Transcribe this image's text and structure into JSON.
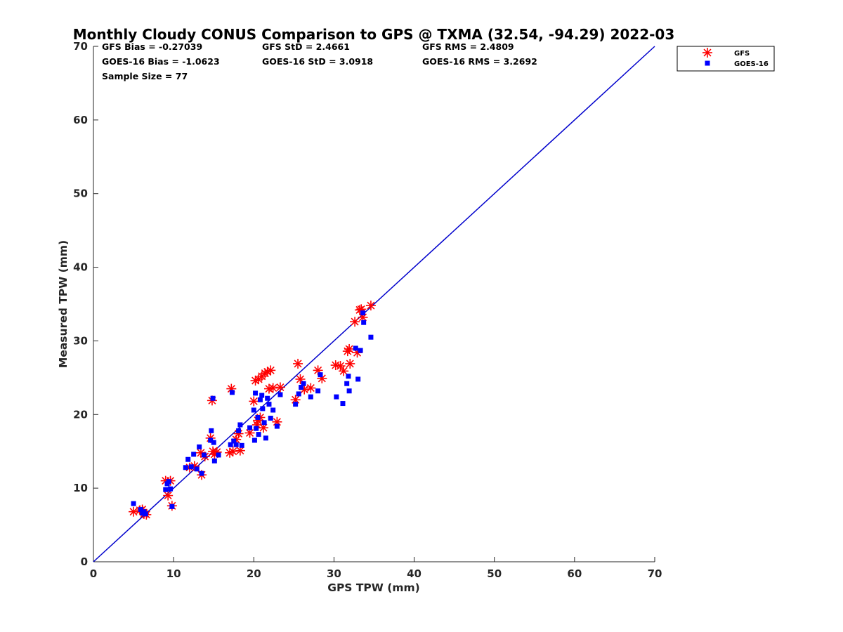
{
  "chart_data": {
    "type": "scatter",
    "title": "Monthly Cloudy CONUS Comparison to GPS @ TXMA (32.54, -94.29) 2022-03",
    "xlabel": "GPS TPW (mm)",
    "ylabel": "Measured TPW (mm)",
    "xlim": [
      0,
      70
    ],
    "ylim": [
      0,
      70
    ],
    "xticks": [
      0,
      10,
      20,
      30,
      40,
      50,
      60,
      70
    ],
    "yticks": [
      0,
      10,
      20,
      30,
      40,
      50,
      60,
      70
    ],
    "grid": false,
    "legend_position": "outside-top-right",
    "one_to_one_line": {
      "x": [
        0,
        70
      ],
      "y": [
        0,
        70
      ],
      "color": "#0000cc"
    },
    "stats": {
      "gfs_bias": "GFS Bias = -0.27039",
      "gfs_std": "GFS StD = 2.4661",
      "gfs_rms": "GFS RMS = 2.4809",
      "goes_bias": "GOES-16 Bias = -1.0623",
      "goes_std": "GOES-16 StD = 3.0918",
      "goes_rms": "GOES-16 RMS = 3.2692",
      "sample_size": "Sample Size = 77"
    },
    "series": [
      {
        "name": "GFS",
        "marker": "asterisk",
        "color": "#ff0000",
        "points": [
          [
            5,
            6.8
          ],
          [
            5.8,
            7
          ],
          [
            6.1,
            7.1
          ],
          [
            6.3,
            6.5
          ],
          [
            6.6,
            6.4
          ],
          [
            9,
            11
          ],
          [
            9.3,
            9
          ],
          [
            9.6,
            11
          ],
          [
            9.8,
            7.6
          ],
          [
            12,
            12.8
          ],
          [
            12.6,
            13
          ],
          [
            13.4,
            14.8
          ],
          [
            13.5,
            11.8
          ],
          [
            13.9,
            14.3
          ],
          [
            14.6,
            16.8
          ],
          [
            14.8,
            21.9
          ],
          [
            14.9,
            15
          ],
          [
            15.1,
            14.6
          ],
          [
            15.4,
            14.9
          ],
          [
            17,
            14.8
          ],
          [
            17.2,
            23.5
          ],
          [
            17.4,
            15
          ],
          [
            17.8,
            16.6
          ],
          [
            18.1,
            17.4
          ],
          [
            18.3,
            15.1
          ],
          [
            19.5,
            17.5
          ],
          [
            20,
            21.8
          ],
          [
            20.2,
            24.6
          ],
          [
            20.4,
            18.6
          ],
          [
            20.5,
            19.2
          ],
          [
            20.6,
            24.8
          ],
          [
            20.8,
            19.6
          ],
          [
            21,
            25.2
          ],
          [
            21.2,
            18.2
          ],
          [
            21.4,
            25.6
          ],
          [
            21.7,
            25.8
          ],
          [
            21.9,
            23.5
          ],
          [
            22.1,
            26
          ],
          [
            22.4,
            23.6
          ],
          [
            22.9,
            19
          ],
          [
            23.3,
            23.7
          ],
          [
            25.2,
            22
          ],
          [
            25.5,
            26.9
          ],
          [
            25.8,
            24.8
          ],
          [
            26.3,
            23.4
          ],
          [
            27.1,
            23.6
          ],
          [
            28,
            26
          ],
          [
            28.5,
            24.9
          ],
          [
            30.2,
            26.7
          ],
          [
            30.8,
            26.6
          ],
          [
            31.2,
            25.9
          ],
          [
            31.7,
            28.6
          ],
          [
            31.9,
            28.9
          ],
          [
            32,
            26.9
          ],
          [
            32.6,
            32.6
          ],
          [
            32.9,
            28.4
          ],
          [
            33.2,
            34.2
          ],
          [
            33.4,
            34.3
          ],
          [
            33.6,
            33.2
          ],
          [
            34.6,
            34.8
          ]
        ]
      },
      {
        "name": "GOES-16",
        "marker": "square",
        "color": "#0000ff",
        "points": [
          [
            5,
            7.9
          ],
          [
            5.9,
            7.1
          ],
          [
            6.1,
            6.6
          ],
          [
            6.3,
            6.8
          ],
          [
            6.5,
            6.5
          ],
          [
            9,
            9.8
          ],
          [
            9.2,
            10.6
          ],
          [
            9.4,
            10.9
          ],
          [
            9.6,
            9.9
          ],
          [
            9.8,
            7.5
          ],
          [
            11.5,
            12.8
          ],
          [
            11.8,
            13.9
          ],
          [
            12.2,
            12.9
          ],
          [
            12.5,
            14.6
          ],
          [
            12.9,
            12.6
          ],
          [
            13.2,
            15.6
          ],
          [
            13.5,
            12
          ],
          [
            13.8,
            14.5
          ],
          [
            14.6,
            16.5
          ],
          [
            14.7,
            17.8
          ],
          [
            14.9,
            22.2
          ],
          [
            15,
            16.2
          ],
          [
            15.1,
            13.7
          ],
          [
            15.6,
            14.5
          ],
          [
            17.1,
            15.9
          ],
          [
            17.3,
            23
          ],
          [
            17.5,
            16.4
          ],
          [
            17.8,
            15.9
          ],
          [
            18.1,
            17.8
          ],
          [
            18.3,
            18.6
          ],
          [
            18.5,
            15.8
          ],
          [
            19.5,
            18.2
          ],
          [
            20,
            20.6
          ],
          [
            20.1,
            16.5
          ],
          [
            20.2,
            22.9
          ],
          [
            20.3,
            18.1
          ],
          [
            20.5,
            19.6
          ],
          [
            20.6,
            17.3
          ],
          [
            20.8,
            22
          ],
          [
            21,
            22.6
          ],
          [
            21.1,
            20.8
          ],
          [
            21.3,
            18.9
          ],
          [
            21.5,
            16.8
          ],
          [
            21.7,
            22.2
          ],
          [
            21.9,
            21.4
          ],
          [
            22.1,
            19.5
          ],
          [
            22.4,
            20.6
          ],
          [
            22.9,
            18.4
          ],
          [
            23.3,
            22.7
          ],
          [
            25.2,
            21.4
          ],
          [
            25.6,
            22.8
          ],
          [
            25.9,
            23.7
          ],
          [
            26.2,
            24.2
          ],
          [
            27.1,
            22.4
          ],
          [
            28,
            23.2
          ],
          [
            28.3,
            25.4
          ],
          [
            30.3,
            22.4
          ],
          [
            31.1,
            21.5
          ],
          [
            31.6,
            24.2
          ],
          [
            31.8,
            25.2
          ],
          [
            31.9,
            23.2
          ],
          [
            32.7,
            29
          ],
          [
            33,
            24.8
          ],
          [
            33.3,
            28.7
          ],
          [
            33.6,
            33.8
          ],
          [
            33.7,
            32.5
          ],
          [
            34.6,
            30.5
          ]
        ]
      }
    ]
  }
}
